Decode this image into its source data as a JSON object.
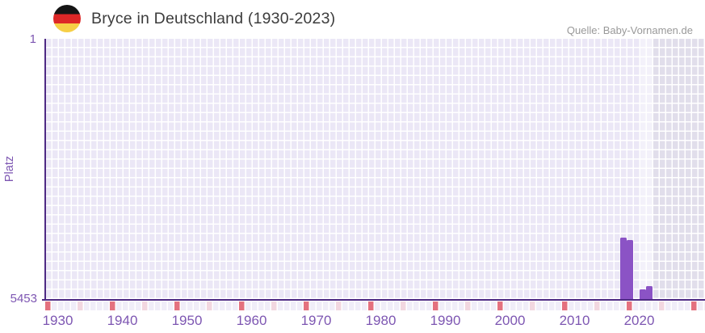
{
  "header": {
    "title": "Bryce in Deutschland (1930-2023)",
    "source": "Quelle: Baby-Vornamen.de",
    "flag_icon": "germany-flag-icon"
  },
  "chart_data": {
    "type": "bar",
    "title": "Bryce in Deutschland (1930-2023)",
    "xlabel": "",
    "ylabel": "Platz",
    "y_axis": {
      "top_label": "1",
      "bottom_label": "5453",
      "min": 1,
      "max": 5453,
      "inverted": true
    },
    "x_range": [
      1930,
      2023
    ],
    "x_tick_labels": [
      "1930",
      "1940",
      "1950",
      "1960",
      "1970",
      "1980",
      "1990",
      "2000",
      "2010",
      "2020"
    ],
    "grid": true,
    "legend": false,
    "series": [
      {
        "name": "Platz",
        "points": [
          {
            "year": 2019,
            "platz": 4170
          },
          {
            "year": 2020,
            "platz": 4220
          },
          {
            "year": 2022,
            "platz": 5250
          },
          {
            "year": 2023,
            "platz": 5180
          }
        ]
      }
    ],
    "shaded_future_region": {
      "from_year": 2024,
      "note": "darker cells, no data"
    }
  },
  "colors": {
    "bar": "#8b53c5",
    "axis": "#4e2a84",
    "axis_label": "#7d56b2",
    "grid_cell": "#ebe7f6",
    "grid_cell_light": "#f3f1fa",
    "grid_cell_future": "#e1deeb",
    "tick_default": "#f0edf8",
    "tick_decade": "#e4717f",
    "tick_half_decade": "#f2d7e0",
    "title_text": "#3c3c3c",
    "source_text": "#999999",
    "flag_black": "#151515",
    "flag_red": "#dd2727",
    "flag_gold": "#f6cf46"
  }
}
